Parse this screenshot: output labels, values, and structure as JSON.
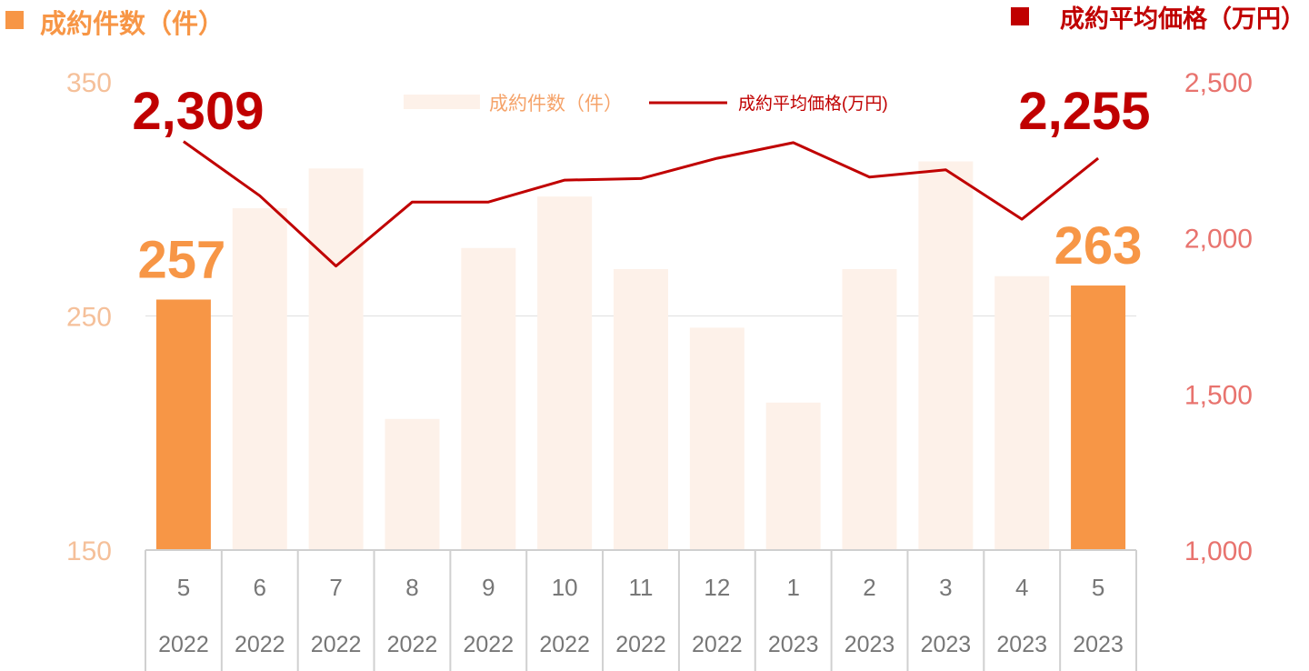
{
  "chart_data": {
    "type": "bar+line",
    "left_title": "成約件数（件）",
    "right_title": "成約平均価格（万円）",
    "colors": {
      "bar_highlight": "#f79646",
      "bar_muted": "#fdf1e9",
      "line": "#c00000",
      "left_axis_text": "#f5c09a",
      "right_axis_text": "#e8736e",
      "left_title": "#f79646",
      "right_title": "#c00000",
      "category_text": "#777777",
      "grid": "#e0e0e0"
    },
    "categories": [
      {
        "month": "5",
        "year": "2022"
      },
      {
        "month": "6",
        "year": "2022"
      },
      {
        "month": "7",
        "year": "2022"
      },
      {
        "month": "8",
        "year": "2022"
      },
      {
        "month": "9",
        "year": "2022"
      },
      {
        "month": "10",
        "year": "2022"
      },
      {
        "month": "11",
        "year": "2022"
      },
      {
        "month": "12",
        "year": "2022"
      },
      {
        "month": "1",
        "year": "2023"
      },
      {
        "month": "2",
        "year": "2023"
      },
      {
        "month": "3",
        "year": "2023"
      },
      {
        "month": "4",
        "year": "2023"
      },
      {
        "month": "5",
        "year": "2023"
      }
    ],
    "series": [
      {
        "name": "成約件数（件）",
        "axis": "left",
        "kind": "bar",
        "values": [
          257,
          296,
          313,
          206,
          279,
          301,
          270,
          245,
          213,
          270,
          316,
          267,
          263
        ],
        "highlight": [
          true,
          false,
          false,
          false,
          false,
          false,
          false,
          false,
          false,
          false,
          false,
          false,
          true
        ]
      },
      {
        "name": "成約平均価格(万円)",
        "axis": "right",
        "kind": "line",
        "values": [
          2309,
          2135,
          1910,
          2115,
          2115,
          2185,
          2190,
          2255,
          2305,
          2195,
          2218,
          2060,
          2255
        ]
      }
    ],
    "left_axis": {
      "min": 150,
      "max": 350,
      "ticks": [
        "150",
        "250",
        "350"
      ]
    },
    "right_axis": {
      "min": 1000,
      "max": 2500,
      "ticks": [
        "1,000",
        "1,500",
        "2,000",
        "2,500"
      ]
    },
    "data_labels": {
      "bar_first": "257",
      "bar_last": "263",
      "line_first": "2,309",
      "line_last": "2,255"
    },
    "legend": {
      "placement": "top-center"
    }
  }
}
